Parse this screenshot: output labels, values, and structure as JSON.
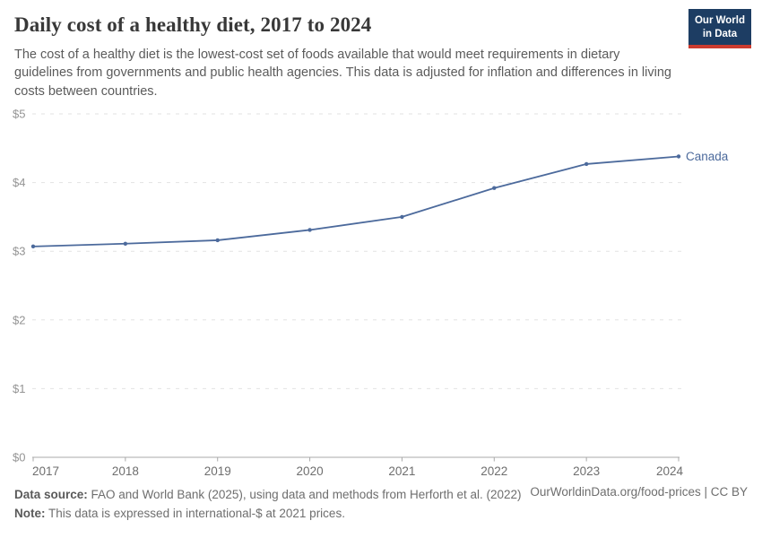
{
  "header": {
    "title": "Daily cost of a healthy diet, 2017 to 2024",
    "subtitle": "The cost of a healthy diet is the lowest-cost set of foods available that would meet requirements in dietary guidelines from governments and public health agencies. This data is adjusted for inflation and differences in living costs between countries.",
    "logo": {
      "line1": "Our World",
      "line2": "in Data",
      "bg_color": "#1d3d63",
      "accent_color": "#cc3b2f"
    }
  },
  "chart_data": {
    "type": "line",
    "title": "Daily cost of a healthy diet, 2017 to 2024",
    "x": [
      2017,
      2018,
      2019,
      2020,
      2021,
      2022,
      2023,
      2024
    ],
    "series": [
      {
        "name": "Canada",
        "values": [
          3.07,
          3.11,
          3.16,
          3.31,
          3.5,
          3.92,
          4.27,
          4.38
        ],
        "color": "#4C6A9C"
      }
    ],
    "xlabel": "",
    "ylabel": "",
    "ylim": [
      0,
      5
    ],
    "yticks": [
      0,
      1,
      2,
      3,
      4,
      5
    ],
    "ytick_prefix": "$",
    "grid": "horizontal-dashed",
    "end_label": "Canada",
    "colors": {
      "gridline": "#e2e2e2",
      "axis": "#a9a9a9",
      "ytick_text": "#949494",
      "xtick_text": "#6e6e6e"
    }
  },
  "footer": {
    "datasource_label": "Data source:",
    "datasource_text": " FAO and World Bank (2025), using data and methods from Herforth et al. (2022)",
    "note_label": "Note:",
    "note_text": " This data is expressed in international-$ at 2021 prices.",
    "link": "OurWorldinData.org/food-prices | CC BY"
  }
}
